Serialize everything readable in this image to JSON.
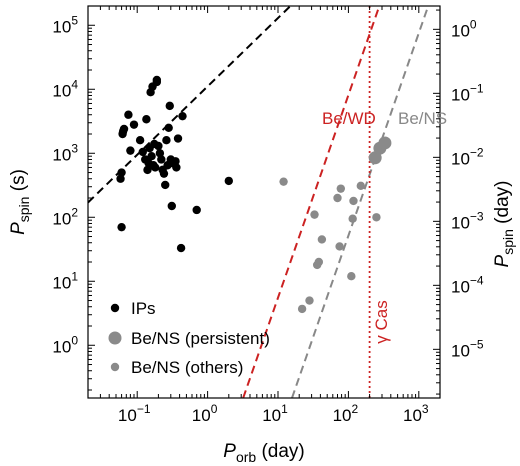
{
  "chart_data": {
    "type": "scatter",
    "xlabel": {
      "main": "P",
      "sub": "orb",
      "unit": " (day)"
    },
    "ylabel_left": {
      "main": "P",
      "sub": "spin",
      "unit": " (s)"
    },
    "ylabel_right": {
      "main": "P",
      "sub": "spin",
      "unit": " (day)"
    },
    "x_scale": "log",
    "y_scale": "log",
    "xlim": [
      0.02,
      2000
    ],
    "ylim_left": [
      0.15,
      200000
    ],
    "ylim_right_day": [
      1.736e-06,
      2.315
    ],
    "x_ticks": [
      {
        "value": 0.1,
        "base": "10",
        "exp": "−1"
      },
      {
        "value": 1,
        "base": "10",
        "exp": "0"
      },
      {
        "value": 10,
        "base": "10",
        "exp": "1"
      },
      {
        "value": 100,
        "base": "10",
        "exp": "2"
      },
      {
        "value": 1000,
        "base": "10",
        "exp": "3"
      }
    ],
    "y_ticks_left": [
      {
        "value": 1,
        "base": "10",
        "exp": "0"
      },
      {
        "value": 10,
        "base": "10",
        "exp": "1"
      },
      {
        "value": 100,
        "base": "10",
        "exp": "2"
      },
      {
        "value": 1000,
        "base": "10",
        "exp": "3"
      },
      {
        "value": 10000,
        "base": "10",
        "exp": "4"
      },
      {
        "value": 100000,
        "base": "10",
        "exp": "5"
      }
    ],
    "y_ticks_right": [
      {
        "value": 1e-05,
        "base": "10",
        "exp": "−5"
      },
      {
        "value": 0.0001,
        "base": "10",
        "exp": "−4"
      },
      {
        "value": 0.001,
        "base": "10",
        "exp": "−3"
      },
      {
        "value": 0.01,
        "base": "10",
        "exp": "−2"
      },
      {
        "value": 0.1,
        "base": "10",
        "exp": "−1"
      },
      {
        "value": 1,
        "base": "10",
        "exp": "0"
      }
    ],
    "series": [
      {
        "name": "IPs",
        "color": "#000000",
        "marker": "small",
        "points": [
          [
            0.06,
            70
          ],
          [
            0.058,
            400
          ],
          [
            0.06,
            500
          ],
          [
            0.062,
            2000
          ],
          [
            0.063,
            2200
          ],
          [
            0.065,
            2400
          ],
          [
            0.075,
            4000
          ],
          [
            0.08,
            1100
          ],
          [
            0.09,
            2800
          ],
          [
            0.11,
            1600
          ],
          [
            0.12,
            1050
          ],
          [
            0.13,
            800
          ],
          [
            0.135,
            3400
          ],
          [
            0.14,
            550
          ],
          [
            0.145,
            700
          ],
          [
            0.15,
            1200
          ],
          [
            0.155,
            9000
          ],
          [
            0.16,
            900
          ],
          [
            0.165,
            11000
          ],
          [
            0.17,
            650
          ],
          [
            0.175,
            1400
          ],
          [
            0.18,
            600
          ],
          [
            0.19,
            13000
          ],
          [
            0.19,
            14000
          ],
          [
            0.2,
            1300
          ],
          [
            0.21,
            1000
          ],
          [
            0.22,
            800
          ],
          [
            0.23,
            550
          ],
          [
            0.24,
            480
          ],
          [
            0.25,
            320
          ],
          [
            0.26,
            1600
          ],
          [
            0.27,
            650
          ],
          [
            0.28,
            2500
          ],
          [
            0.29,
            5500
          ],
          [
            0.3,
            800
          ],
          [
            0.31,
            150
          ],
          [
            0.32,
            700
          ],
          [
            0.35,
            750
          ],
          [
            0.36,
            600
          ],
          [
            0.38,
            1700
          ],
          [
            0.42,
            33
          ],
          [
            0.44,
            3800
          ],
          [
            0.7,
            130
          ],
          [
            2.0,
            370
          ]
        ]
      },
      {
        "name": "Be/NS (persistent)",
        "color": "#8a8a8a",
        "marker": "large",
        "points": [
          [
            240,
            850
          ],
          [
            280,
            1200
          ],
          [
            330,
            1450
          ]
        ]
      },
      {
        "name": "Be/NS (others)",
        "color": "#8a8a8a",
        "marker": "small",
        "points": [
          [
            12,
            360
          ],
          [
            22,
            3.7
          ],
          [
            28,
            5
          ],
          [
            33,
            110
          ],
          [
            36,
            18
          ],
          [
            38,
            20
          ],
          [
            42,
            45
          ],
          [
            70,
            200
          ],
          [
            75,
            35
          ],
          [
            78,
            280
          ],
          [
            110,
            12
          ],
          [
            115,
            95
          ],
          [
            118,
            180
          ],
          [
            150,
            310
          ],
          [
            250,
            100
          ]
        ]
      }
    ],
    "lines": [
      {
        "name": "",
        "color": "#000000",
        "points": [
          [
            0.02,
            170
          ],
          [
            15,
            200000
          ]
        ]
      },
      {
        "label": "Be/WD",
        "color": "#cc2222",
        "points": [
          [
            3.2,
            0.15
          ],
          [
            275,
            200000
          ]
        ]
      },
      {
        "label": "Be/NS",
        "color": "#888888",
        "points": [
          [
            15.8,
            0.15
          ],
          [
            1360,
            200000
          ]
        ]
      }
    ],
    "vline": {
      "label": "γ Cas",
      "x": 200,
      "color": "#cc2222"
    },
    "legend": {
      "position": "lower-left",
      "entries": [
        "IPs",
        "Be/NS (persistent)",
        "Be/NS (others)"
      ]
    }
  }
}
